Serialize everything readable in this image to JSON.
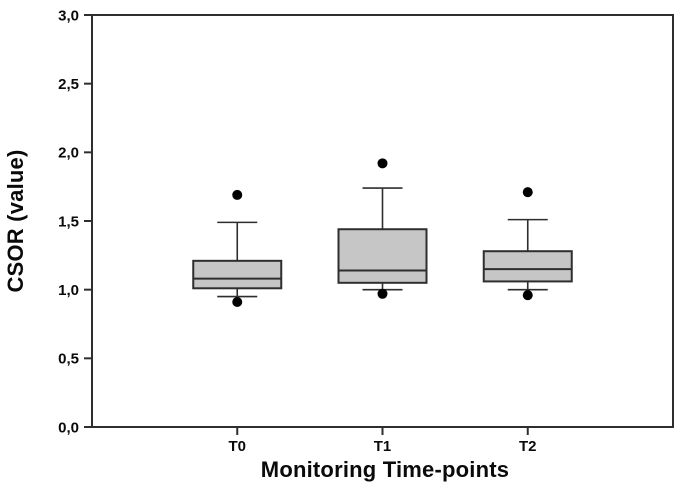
{
  "chart_data": {
    "type": "boxplot",
    "title": "",
    "xlabel": "Monitoring Time-points",
    "ylabel": "CSOR (value)",
    "ylim": [
      0.0,
      3.0
    ],
    "ytick_step": 0.5,
    "ytick_values": [
      0.0,
      0.5,
      1.0,
      1.5,
      2.0,
      2.5,
      3.0
    ],
    "ytick_labels": [
      "0,0",
      "0,5",
      "1,0",
      "1,5",
      "2,0",
      "2,5",
      "3,0"
    ],
    "categories": [
      "T0",
      "T1",
      "T2"
    ],
    "series": [
      {
        "category": "T0",
        "whisker_low": 0.95,
        "q1": 1.01,
        "median": 1.08,
        "q3": 1.21,
        "whisker_high": 1.49,
        "outliers": [
          1.69,
          0.91
        ]
      },
      {
        "category": "T1",
        "whisker_low": 1.0,
        "q1": 1.05,
        "median": 1.14,
        "q3": 1.44,
        "whisker_high": 1.74,
        "outliers": [
          1.92,
          0.97
        ]
      },
      {
        "category": "T2",
        "whisker_low": 1.0,
        "q1": 1.06,
        "median": 1.15,
        "q3": 1.28,
        "whisker_high": 1.51,
        "outliers": [
          1.71,
          0.96
        ]
      }
    ],
    "legend": null,
    "grid": false,
    "colors": {
      "box_fill": "#c6c6c6",
      "box_border": "#2e2e2e",
      "median_line": "#2e2e2e",
      "whisker_line": "#2e2e2e",
      "outlier_dot": "#000000",
      "frame": "#2e2e2e",
      "text": "#0a0a0a",
      "background": "#ffffff"
    }
  }
}
